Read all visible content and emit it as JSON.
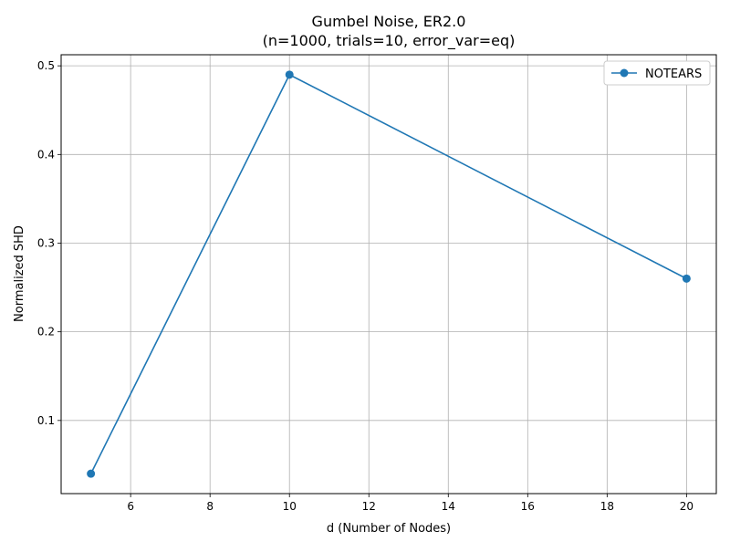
{
  "chart_data": {
    "type": "line",
    "title": "Gumbel Noise, ER2.0",
    "subtitle": "(n=1000, trials=10, error_var=eq)",
    "xlabel": "d (Number of Nodes)",
    "ylabel": "Normalized SHD",
    "xlim": [
      4.25,
      20.75
    ],
    "ylim": [
      0.0175,
      0.5125
    ],
    "xticks": [
      6,
      8,
      10,
      12,
      14,
      16,
      18,
      20
    ],
    "yticks": [
      0.1,
      0.2,
      0.3,
      0.4,
      0.5
    ],
    "x": [
      5,
      10,
      20
    ],
    "series": [
      {
        "name": "NOTEARS",
        "values": [
          0.04,
          0.49,
          0.26
        ],
        "color": "#1f77b4",
        "marker": "circle"
      }
    ],
    "grid": true,
    "legend_position": "top-right"
  }
}
